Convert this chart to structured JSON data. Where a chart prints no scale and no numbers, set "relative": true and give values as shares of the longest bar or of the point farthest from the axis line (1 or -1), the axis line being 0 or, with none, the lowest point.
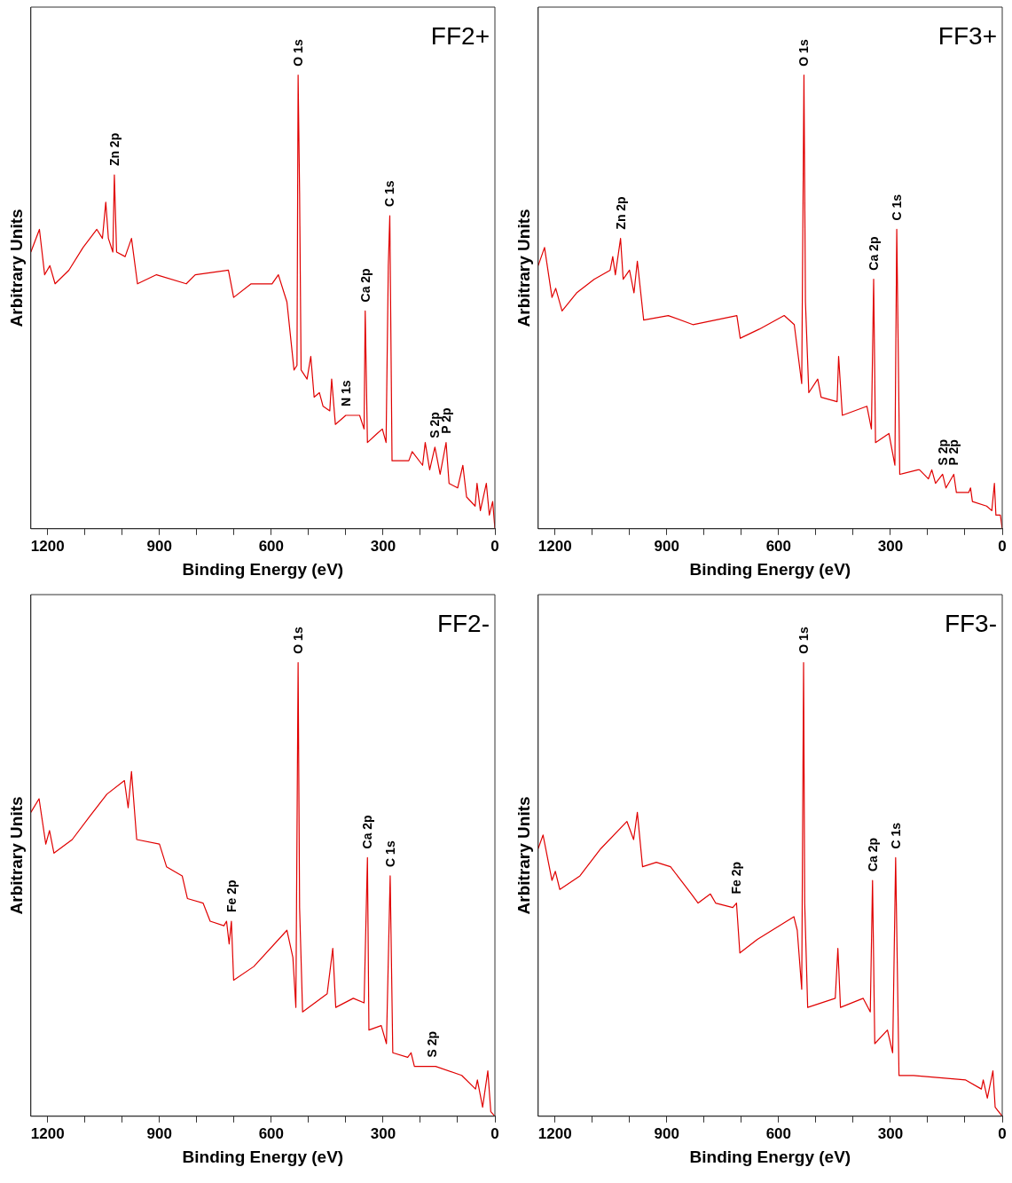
{
  "chart_data": [
    {
      "type": "line",
      "title": "FF2+",
      "xlabel": "Binding Energy (eV)",
      "ylabel": "Arbitrary Units",
      "relative": true,
      "tick_labels": "x",
      "grid": false,
      "legend": false,
      "marker": "none",
      "xlim": [
        1245,
        0
      ],
      "xticks": [
        1200,
        {
          "value": 1100,
          "label": null
        },
        {
          "value": 1000,
          "label": null
        },
        900,
        {
          "value": 800,
          "label": null
        },
        {
          "value": 700,
          "label": null
        },
        600,
        {
          "value": 500,
          "label": null
        },
        {
          "value": 400,
          "label": null
        },
        300,
        {
          "value": 200,
          "label": null
        },
        {
          "value": 100,
          "label": null
        },
        0
      ],
      "series": [
        {
          "color": "#e00000",
          "x": [
            1245,
            1222,
            1208,
            1194,
            1180,
            1143,
            1105,
            1068,
            1053,
            1044,
            1037,
            1025,
            1021,
            1015,
            992,
            975,
            959,
            908,
            828,
            804,
            715,
            701,
            654,
            598,
            581,
            558,
            539,
            531,
            528,
            524,
            520,
            504,
            494,
            485,
            471,
            461,
            443,
            438,
            428,
            400,
            363,
            351,
            348,
            342,
            316,
            302,
            292,
            286,
            282,
            276,
            231,
            222,
            194,
            187,
            175,
            161,
            147,
            131,
            123,
            100,
            86,
            76,
            53,
            48,
            39,
            23,
            15,
            6,
            0
          ],
          "values": [
            0.61,
            0.66,
            0.56,
            0.58,
            0.54,
            0.57,
            0.62,
            0.66,
            0.64,
            0.72,
            0.64,
            0.61,
            0.78,
            0.61,
            0.6,
            0.64,
            0.54,
            0.56,
            0.54,
            0.56,
            0.57,
            0.51,
            0.54,
            0.54,
            0.56,
            0.5,
            0.35,
            0.36,
            1.0,
            0.74,
            0.35,
            0.33,
            0.38,
            0.29,
            0.3,
            0.27,
            0.26,
            0.33,
            0.23,
            0.25,
            0.25,
            0.22,
            0.48,
            0.19,
            0.21,
            0.22,
            0.19,
            0.58,
            0.69,
            0.15,
            0.15,
            0.17,
            0.14,
            0.19,
            0.13,
            0.18,
            0.12,
            0.19,
            0.1,
            0.09,
            0.14,
            0.07,
            0.05,
            0.1,
            0.04,
            0.1,
            0.03,
            0.06,
            0
          ]
        }
      ],
      "annotations": [
        {
          "text": "Zn 2p",
          "x": 1021,
          "y": 0.78
        },
        {
          "text": "O 1s",
          "x": 528,
          "y": 1.0
        },
        {
          "text": "C 1s",
          "x": 282,
          "y": 0.69
        },
        {
          "text": "Ca 2p",
          "x": 348,
          "y": 0.48
        },
        {
          "text": "N 1s",
          "x": 400,
          "y": 0.25
        },
        {
          "text": "S 2p",
          "x": 161,
          "y": 0.18
        },
        {
          "text": "P 2p",
          "x": 131,
          "y": 0.19
        }
      ]
    },
    {
      "type": "line",
      "title": "FF3+",
      "xlabel": "Binding Energy (eV)",
      "ylabel": "Arbitrary Units",
      "relative": true,
      "tick_labels": "x",
      "grid": false,
      "legend": false,
      "marker": "none",
      "xlim": [
        1245,
        0
      ],
      "xticks": [
        1200,
        {
          "value": 1100,
          "label": null
        },
        {
          "value": 1000,
          "label": null
        },
        900,
        {
          "value": 800,
          "label": null
        },
        {
          "value": 700,
          "label": null
        },
        600,
        {
          "value": 500,
          "label": null
        },
        {
          "value": 400,
          "label": null
        },
        300,
        {
          "value": 200,
          "label": null
        },
        {
          "value": 100,
          "label": null
        },
        0
      ],
      "series": [
        {
          "color": "#e00000",
          "x": [
            1245,
            1228,
            1208,
            1198,
            1181,
            1142,
            1095,
            1052,
            1045,
            1038,
            1024,
            1017,
            1000,
            988,
            979,
            962,
            896,
            830,
            712,
            703,
            652,
            585,
            558,
            538,
            532,
            528,
            519,
            495,
            486,
            443,
            439,
            429,
            363,
            351,
            345,
            340,
            304,
            288,
            283,
            275,
            226,
            222,
            198,
            189,
            179,
            160,
            151,
            130,
            123,
            90,
            85,
            80,
            42,
            28,
            21,
            17,
            5,
            0
          ],
          "values": [
            0.58,
            0.62,
            0.51,
            0.53,
            0.48,
            0.52,
            0.55,
            0.57,
            0.6,
            0.56,
            0.64,
            0.55,
            0.57,
            0.52,
            0.59,
            0.46,
            0.47,
            0.45,
            0.47,
            0.42,
            0.44,
            0.47,
            0.45,
            0.32,
            1.0,
            0.5,
            0.3,
            0.33,
            0.29,
            0.28,
            0.38,
            0.25,
            0.27,
            0.22,
            0.55,
            0.19,
            0.21,
            0.14,
            0.66,
            0.12,
            0.13,
            0.13,
            0.11,
            0.13,
            0.1,
            0.12,
            0.09,
            0.12,
            0.08,
            0.08,
            0.09,
            0.06,
            0.05,
            0.04,
            0.1,
            0.03,
            0.03,
            0
          ]
        }
      ],
      "annotations": [
        {
          "text": "Zn 2p",
          "x": 1024,
          "y": 0.64
        },
        {
          "text": "O 1s",
          "x": 532,
          "y": 1.0
        },
        {
          "text": "C 1s",
          "x": 283,
          "y": 0.66
        },
        {
          "text": "Ca 2p",
          "x": 345,
          "y": 0.55
        },
        {
          "text": "S 2p",
          "x": 160,
          "y": 0.12
        },
        {
          "text": "P 2p",
          "x": 130,
          "y": 0.12
        }
      ]
    },
    {
      "type": "line",
      "title": "FF2-",
      "xlabel": "Binding Energy (eV)",
      "ylabel": "Arbitrary Units",
      "relative": true,
      "tick_labels": "x",
      "grid": false,
      "legend": false,
      "marker": "none",
      "xlim": [
        1245,
        0
      ],
      "xticks": [
        1200,
        {
          "value": 1100,
          "label": null
        },
        {
          "value": 1000,
          "label": null
        },
        900,
        {
          "value": 800,
          "label": null
        },
        {
          "value": 700,
          "label": null
        },
        600,
        {
          "value": 500,
          "label": null
        },
        {
          "value": 400,
          "label": null
        },
        300,
        {
          "value": 200,
          "label": null
        },
        {
          "value": 100,
          "label": null
        },
        0
      ],
      "series": [
        {
          "color": "#e00000",
          "x": [
            1245,
            1223,
            1205,
            1195,
            1183,
            1134,
            1088,
            1041,
            994,
            984,
            975,
            961,
            900,
            881,
            839,
            825,
            783,
            764,
            727,
            720,
            713,
            707,
            701,
            647,
            558,
            542,
            534,
            528,
            524,
            516,
            450,
            435,
            427,
            380,
            351,
            342,
            338,
            305,
            291,
            281,
            274,
            234,
            225,
            216,
            159,
            89,
            52,
            47,
            33,
            19,
            11,
            0
          ],
          "values": [
            0.67,
            0.7,
            0.6,
            0.63,
            0.58,
            0.61,
            0.66,
            0.71,
            0.74,
            0.68,
            0.76,
            0.61,
            0.6,
            0.55,
            0.53,
            0.48,
            0.47,
            0.43,
            0.42,
            0.43,
            0.38,
            0.43,
            0.3,
            0.33,
            0.41,
            0.35,
            0.24,
            1.0,
            0.46,
            0.23,
            0.27,
            0.37,
            0.24,
            0.26,
            0.25,
            0.57,
            0.19,
            0.2,
            0.16,
            0.53,
            0.14,
            0.13,
            0.14,
            0.11,
            0.11,
            0.09,
            0.06,
            0.08,
            0.02,
            0.1,
            0.01,
            0
          ]
        }
      ],
      "annotations": [
        {
          "text": "Fe 2p",
          "x": 707,
          "y": 0.43
        },
        {
          "text": "O 1s",
          "x": 528,
          "y": 1.0
        },
        {
          "text": "Ca 2p",
          "x": 342,
          "y": 0.57
        },
        {
          "text": "C 1s",
          "x": 281,
          "y": 0.53
        },
        {
          "text": "S 2p",
          "x": 170,
          "y": 0.11
        }
      ]
    },
    {
      "type": "line",
      "title": "FF3-",
      "xlabel": "Binding Energy (eV)",
      "ylabel": "Arbitrary Units",
      "relative": true,
      "tick_labels": "x",
      "grid": false,
      "legend": false,
      "marker": "none",
      "xlim": [
        1245,
        0
      ],
      "xticks": [
        1200,
        {
          "value": 1100,
          "label": null
        },
        {
          "value": 1000,
          "label": null
        },
        900,
        {
          "value": 800,
          "label": null
        },
        {
          "value": 700,
          "label": null
        },
        600,
        {
          "value": 500,
          "label": null
        },
        {
          "value": 400,
          "label": null
        },
        300,
        {
          "value": 200,
          "label": null
        },
        {
          "value": 100,
          "label": null
        },
        0
      ],
      "series": [
        {
          "color": "#e00000",
          "x": [
            1245,
            1232,
            1208,
            1199,
            1187,
            1133,
            1077,
            1007,
            989,
            979,
            965,
            928,
            890,
            834,
            816,
            783,
            769,
            723,
            713,
            704,
            657,
            559,
            550,
            538,
            533,
            530,
            522,
            448,
            441,
            434,
            373,
            354,
            348,
            342,
            308,
            294,
            286,
            277,
            238,
            98,
            56,
            51,
            40,
            25,
            19,
            0
          ],
          "values": [
            0.59,
            0.62,
            0.52,
            0.54,
            0.5,
            0.53,
            0.59,
            0.65,
            0.61,
            0.67,
            0.55,
            0.56,
            0.55,
            0.49,
            0.47,
            0.49,
            0.47,
            0.46,
            0.47,
            0.36,
            0.39,
            0.44,
            0.41,
            0.28,
            1.0,
            0.47,
            0.24,
            0.26,
            0.37,
            0.24,
            0.26,
            0.23,
            0.52,
            0.16,
            0.19,
            0.14,
            0.57,
            0.09,
            0.09,
            0.08,
            0.06,
            0.08,
            0.04,
            0.1,
            0.02,
            0
          ]
        }
      ],
      "annotations": [
        {
          "text": "Fe 2p",
          "x": 713,
          "y": 0.47
        },
        {
          "text": "O 1s",
          "x": 533,
          "y": 1.0
        },
        {
          "text": "Ca 2p",
          "x": 348,
          "y": 0.52
        },
        {
          "text": "C 1s",
          "x": 286,
          "y": 0.57
        }
      ]
    }
  ]
}
